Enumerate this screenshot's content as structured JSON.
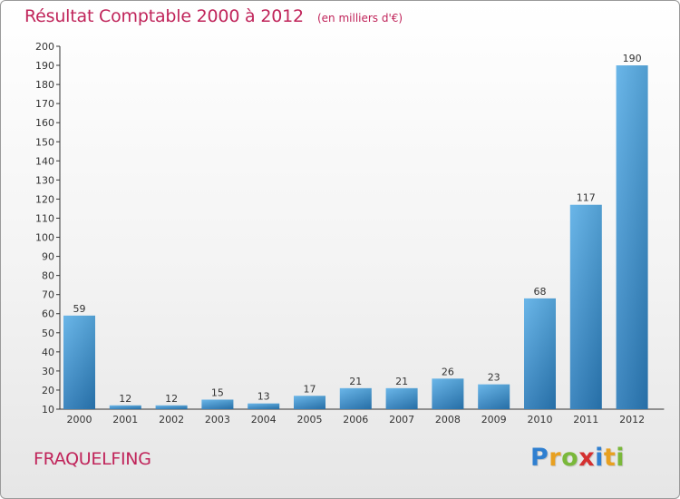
{
  "header": {
    "title": "Résultat Comptable 2000 à 2012",
    "unit": "(en milliers d'€)"
  },
  "commune": "FRAQUELFING",
  "logo": {
    "letters": [
      "P",
      "r",
      "o",
      "x",
      "i",
      "t",
      "i"
    ],
    "colors": [
      "#2f7fd0",
      "#e8a020",
      "#7ab83a",
      "#d43030",
      "#2f7fd0",
      "#e8a020",
      "#7ab83a"
    ]
  },
  "colors": {
    "bar_light": "#5aaee6",
    "bar_dark": "#2a7ab8",
    "title": "#c0245a",
    "axis": "#333333"
  },
  "chart_data": {
    "type": "bar",
    "title": "Résultat Comptable 2000 à 2012",
    "ylabel": "(en milliers d'€)",
    "xlabel": "",
    "categories": [
      "2000",
      "2001",
      "2002",
      "2003",
      "2004",
      "2005",
      "2006",
      "2007",
      "2008",
      "2009",
      "2010",
      "2011",
      "2012"
    ],
    "values": [
      59,
      12,
      12,
      15,
      13,
      17,
      21,
      21,
      26,
      23,
      68,
      117,
      190
    ],
    "ylim": [
      10,
      200
    ],
    "yticks": [
      10,
      20,
      30,
      40,
      50,
      60,
      70,
      80,
      90,
      100,
      110,
      120,
      130,
      140,
      150,
      160,
      170,
      180,
      190,
      200
    ],
    "grid": false
  }
}
